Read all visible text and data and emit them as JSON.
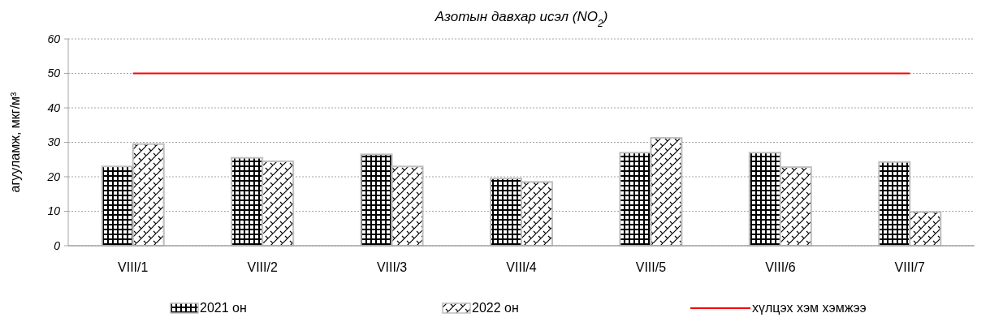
{
  "chart_data": {
    "type": "bar",
    "title": "Азотын давхар исэл (NO$_{2}$)",
    "ylabel": "агууламж, мкг/м³",
    "categories": [
      "VIII/1",
      "VIII/2",
      "VIII/3",
      "VIII/4",
      "VIII/5",
      "VIII/6",
      "VIII/7"
    ],
    "series": [
      {
        "name": "2021 он",
        "color": "#bfbfbf",
        "values": [
          23,
          25.5,
          26.5,
          19.5,
          27,
          27,
          24.3
        ]
      },
      {
        "name": "2022 он",
        "color": "#bfbfbf",
        "values": [
          29.5,
          24.5,
          23,
          18.5,
          31.3,
          22.8,
          9.8
        ]
      },
      {
        "name": "хүлцэх хэм хэмжээ",
        "type": "line",
        "color": "#ff0000",
        "values": [
          50,
          50,
          50,
          50,
          50,
          50,
          50
        ]
      }
    ],
    "ylim": [
      0,
      60
    ],
    "yticks": [
      0,
      10,
      20,
      30,
      40,
      50,
      60
    ],
    "grid": "y",
    "legend": "bottom"
  }
}
